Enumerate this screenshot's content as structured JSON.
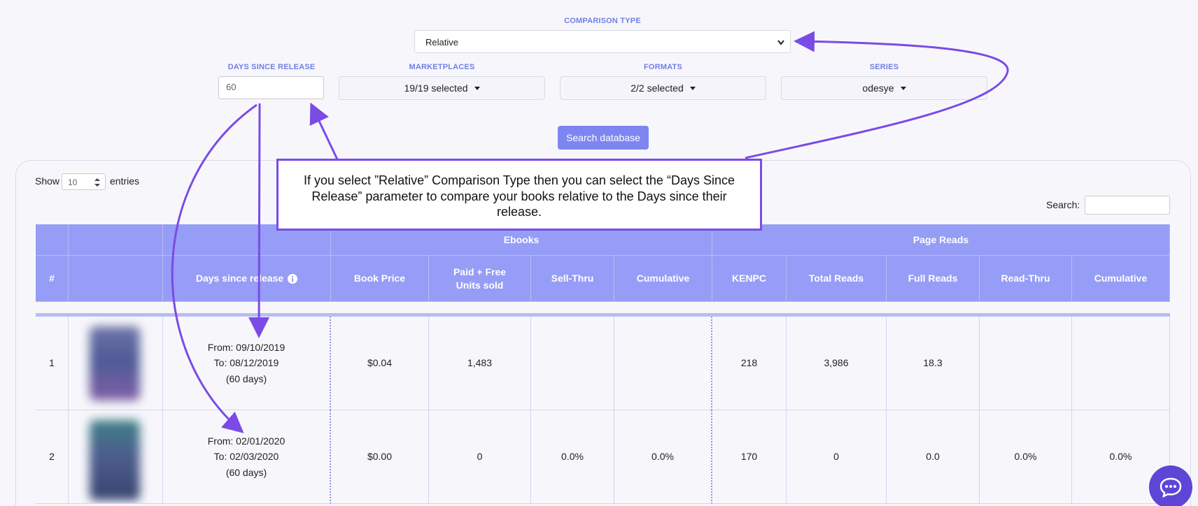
{
  "filters": {
    "comparison_type_label": "COMPARISON TYPE",
    "comparison_type_value": "Relative",
    "days_since_release_label": "DAYS SINCE RELEASE",
    "days_since_release_value": "60",
    "marketplaces_label": "MARKETPLACES",
    "marketplaces_value": "19/19 selected",
    "formats_label": "FORMATS",
    "formats_value": "2/2 selected",
    "series_label": "SERIES",
    "series_value": "odesye",
    "search_button": "Search database"
  },
  "table_controls": {
    "show_label": "Show",
    "entries_value": "10",
    "entries_label": "entries",
    "search_label": "Search:"
  },
  "callout": {
    "text": "If you select ”Relative” Comparison Type then you can select the “Days Since Release” parameter to compare your books relative to the   Days since their release."
  },
  "table": {
    "group_headers": {
      "ebooks": "Ebooks",
      "page_reads": "Page Reads"
    },
    "columns": {
      "num": "#",
      "days_since_release": "Days since release",
      "book_price": "Book Price",
      "units_sold": "Paid + Free Units sold",
      "sell_thru": "Sell-Thru",
      "cumulative_ebooks": "Cumulative",
      "kenpc": "KENPC",
      "total_reads": "Total Reads",
      "full_reads": "Full Reads",
      "read_thru": "Read-Thru",
      "cumulative_reads": "Cumulative"
    },
    "rows": [
      {
        "num": "1",
        "from": "From: 09/10/2019",
        "to": "To: 08/12/2019",
        "days": "(60 days)",
        "book_price": "$0.04",
        "units_sold": "1,483",
        "sell_thru": "",
        "cumulative_ebooks": "",
        "kenpc": "218",
        "total_reads": "3,986",
        "full_reads": "18.3",
        "read_thru": "",
        "cumulative_reads": ""
      },
      {
        "num": "2",
        "from": "From: 02/01/2020",
        "to": "To: 02/03/2020",
        "days": "(60 days)",
        "book_price": "$0.00",
        "units_sold": "0",
        "sell_thru": "0.0%",
        "cumulative_ebooks": "0.0%",
        "kenpc": "170",
        "total_reads": "0",
        "full_reads": "0.0",
        "read_thru": "0.0%",
        "cumulative_reads": "0.0%"
      }
    ]
  },
  "colors": {
    "header_bg": "#959df6",
    "accent": "#7d86f0",
    "annotation": "#7b4be6",
    "chat_bubble": "#5d46d6"
  },
  "icons": [
    "info-icon",
    "caret-down-icon",
    "chevron-down-icon",
    "stepper-icon",
    "chat-icon"
  ]
}
